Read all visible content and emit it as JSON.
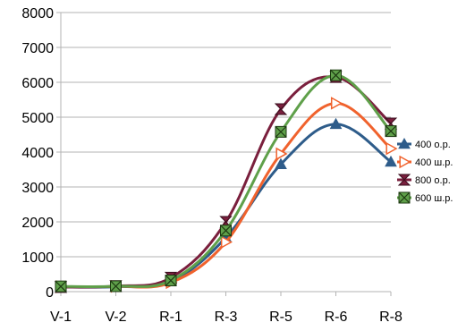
{
  "chart_data": {
    "type": "line",
    "title": "",
    "xlabel": "",
    "ylabel": "",
    "categories": [
      "V-1",
      "V-2",
      "R-1",
      "R-3",
      "R-5",
      "R-6",
      "R-8"
    ],
    "ylim": [
      0,
      8000
    ],
    "yticks": [
      0,
      1000,
      2000,
      3000,
      4000,
      5000,
      6000,
      7000,
      8000
    ],
    "grid": true,
    "legend_position": "right",
    "smooth": true,
    "series": [
      {
        "name": "400 о.р.",
        "color": "#2E5C8A",
        "marker": "triangle-up",
        "values": [
          130,
          140,
          290,
          1550,
          3650,
          4800,
          3720
        ]
      },
      {
        "name": "400 ш.р.",
        "color": "#F0622D",
        "marker": "triangle-right",
        "values": [
          140,
          150,
          260,
          1420,
          3950,
          5400,
          4100
        ]
      },
      {
        "name": "800 о.р.",
        "color": "#7A1F3D",
        "marker": "bowtie",
        "values": [
          130,
          160,
          400,
          2000,
          5230,
          6150,
          4820
        ]
      },
      {
        "name": "600 ш.р.",
        "color": "#5FA04A",
        "marker": "box-x",
        "values": [
          150,
          155,
          320,
          1750,
          4580,
          6200,
          4600
        ]
      }
    ]
  }
}
